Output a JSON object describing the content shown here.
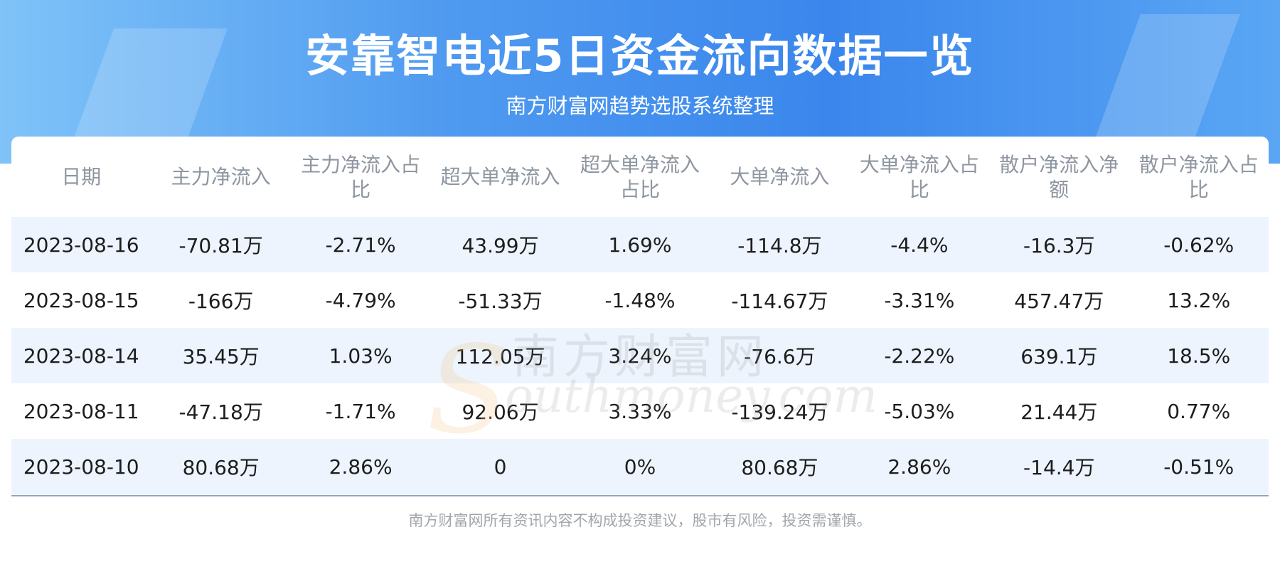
{
  "header": {
    "title": "安靠智电近5日资金流向数据一览",
    "subtitle": "南方财富网趋势选股系统整理"
  },
  "table": {
    "columns": [
      "日期",
      "主力净流入",
      "主力净流入占比",
      "超大单净流入",
      "超大单净流入占比",
      "大单净流入",
      "大单净流入占比",
      "散户净流入净额",
      "散户净流入占比"
    ],
    "rows": [
      [
        "2023-08-16",
        "-70.81万",
        "-2.71%",
        "43.99万",
        "1.69%",
        "-114.8万",
        "-4.4%",
        "-16.3万",
        "-0.62%"
      ],
      [
        "2023-08-15",
        "-166万",
        "-4.79%",
        "-51.33万",
        "-1.48%",
        "-114.67万",
        "-3.31%",
        "457.47万",
        "13.2%"
      ],
      [
        "2023-08-14",
        "35.45万",
        "1.03%",
        "112.05万",
        "3.24%",
        "-76.6万",
        "-2.22%",
        "639.1万",
        "18.5%"
      ],
      [
        "2023-08-11",
        "-47.18万",
        "-1.71%",
        "92.06万",
        "3.33%",
        "-139.24万",
        "-5.03%",
        "21.44万",
        "0.77%"
      ],
      [
        "2023-08-10",
        "80.68万",
        "2.86%",
        "0",
        "0%",
        "80.68万",
        "2.86%",
        "-14.4万",
        "-0.51%"
      ]
    ]
  },
  "watermark": {
    "name": "南方财富网",
    "url": "outhmoney.com"
  },
  "footer": "南方财富网所有资讯内容不构成投资建议，股市有风险，投资需谨慎。"
}
